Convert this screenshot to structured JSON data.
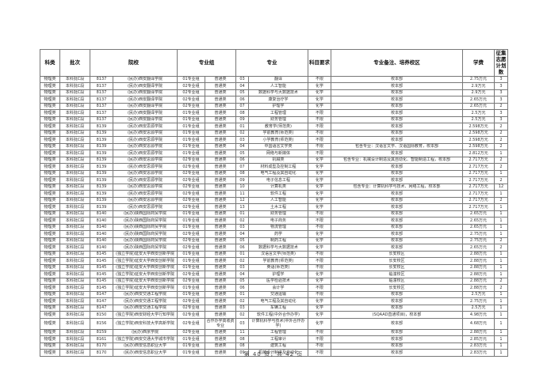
{
  "page": {
    "footer": "第 40 页，共 42 页"
  },
  "table": {
    "headers": [
      "科类",
      "批次",
      "院校",
      "专业组",
      "专业",
      "科目要求",
      "专业备注、培养校区",
      "学费",
      "征集志愿计划数"
    ],
    "columns": [
      "科类",
      "批次",
      "院校代码",
      "院校名称",
      "专业组",
      "类型",
      "专业代码",
      "专业名称",
      "科目要求",
      "专业备注、培养校区",
      "学费",
      "征集志愿计划数"
    ],
    "rows": [
      [
        "物理类",
        "本科批C段",
        "8137",
        "(民办)西安翻译学院",
        "01专业组",
        "普通类",
        "03",
        "翻译",
        "不限",
        "校本部",
        "2.75万元",
        "3"
      ],
      [
        "物理类",
        "本科批C段",
        "8137",
        "(民办)西安翻译学院",
        "02专业组",
        "普通类",
        "04",
        "人工智能",
        "化学",
        "校本部",
        "2.9万元",
        "3"
      ],
      [
        "物理类",
        "本科批C段",
        "8137",
        "(民办)西安翻译学院",
        "02专业组",
        "普通类",
        "05",
        "数据科学与大数据技术",
        "化学",
        "校本部",
        "2.9万元",
        "3"
      ],
      [
        "物理类",
        "本科批C段",
        "8137",
        "(民办)西安翻译学院",
        "02专业组",
        "普通类",
        "06",
        "康复治疗学",
        "化学",
        "校本部",
        "2.65万元",
        "3"
      ],
      [
        "物理类",
        "本科批C段",
        "8137",
        "(民办)西安翻译学院",
        "02专业组",
        "普通类",
        "07",
        "护理学",
        "化学",
        "校本部",
        "2.65万元",
        "2"
      ],
      [
        "物理类",
        "本科批C段",
        "8137",
        "(民办)西安翻译学院",
        "01专业组",
        "普通类",
        "08",
        "工程管理",
        "不限",
        "校本部",
        "2.5万元",
        "3"
      ],
      [
        "物理类",
        "本科批C段",
        "8137",
        "(民办)西安翻译学院",
        "01专业组",
        "普通类",
        "09",
        "财务管理",
        "不限",
        "校本部",
        "2.5万元",
        "3"
      ],
      [
        "物理类",
        "本科批C段",
        "8139",
        "(民办)西安思源学院",
        "01专业组",
        "普通类",
        "01",
        "教育学(师范类)",
        "不限",
        "校本部",
        "2.598万元",
        "2"
      ],
      [
        "物理类",
        "本科批C段",
        "8139",
        "(民办)西安思源学院",
        "01专业组",
        "普通类",
        "02",
        "学前教育(师范类)",
        "不限",
        "校本部",
        "2.598万元",
        "2"
      ],
      [
        "物理类",
        "本科批C段",
        "8139",
        "(民办)西安思源学院",
        "01专业组",
        "普通类",
        "03",
        "小学教育(师范类)",
        "不限",
        "校本部",
        "2.598万元",
        "2"
      ],
      [
        "物理类",
        "本科批C段",
        "8139",
        "(民办)西安思源学院",
        "01专业组",
        "普通类",
        "04",
        "中国语言文学类",
        "不限",
        "包含专业：汉语言文学、汉语国际教育，校本部",
        "2.598万元",
        "2"
      ],
      [
        "物理类",
        "本科批C段",
        "8139",
        "(民办)西安思源学院",
        "01专业组",
        "普通类",
        "05",
        "网络与新媒体",
        "不限",
        "校本部",
        "2.812万元",
        "1"
      ],
      [
        "物理类",
        "本科批C段",
        "8139",
        "(民办)西安思源学院",
        "02专业组",
        "普通类",
        "06",
        "机械类",
        "化学",
        "包含专业：机械设计制造及其自动化、智能制造工程，校本部",
        "2.717万元",
        "2"
      ],
      [
        "物理类",
        "本科批C段",
        "8139",
        "(民办)西安思源学院",
        "02专业组",
        "普通类",
        "07",
        "材料成型及控制工程",
        "化学",
        "校本部",
        "2.717万元",
        "2"
      ],
      [
        "物理类",
        "本科批C段",
        "8139",
        "(民办)西安思源学院",
        "02专业组",
        "普通类",
        "08",
        "电气工程及其自动化",
        "化学",
        "校本部",
        "2.717万元",
        "1"
      ],
      [
        "物理类",
        "本科批C段",
        "8139",
        "(民办)西安思源学院",
        "02专业组",
        "普通类",
        "09",
        "电子信息工程",
        "化学",
        "校本部",
        "2.717万元",
        "2"
      ],
      [
        "物理类",
        "本科批C段",
        "8139",
        "(民办)西安思源学院",
        "02专业组",
        "普通类",
        "10",
        "计算机类",
        "化学",
        "包含专业：计算机科学与技术、网络工程，校本部",
        "2.717万元",
        "12"
      ],
      [
        "物理类",
        "本科批C段",
        "8139",
        "(民办)西安思源学院",
        "02专业组",
        "普通类",
        "11",
        "软件工程",
        "化学",
        "校本部",
        "2.717万元",
        "1"
      ],
      [
        "物理类",
        "本科批C段",
        "8139",
        "(民办)西安思源学院",
        "02专业组",
        "普通类",
        "12",
        "人工智能",
        "化学",
        "校本部",
        "2.717万元",
        "2"
      ],
      [
        "物理类",
        "本科批C段",
        "8139",
        "(民办)西安思源学院",
        "02专业组",
        "普通类",
        "13",
        "土木工程",
        "化学",
        "校本部",
        "2.717万元",
        "1"
      ],
      [
        "物理类",
        "本科批C段",
        "8140",
        "(民办)陕西国际商贸学院",
        "01专业组",
        "普通类",
        "01",
        "财务管理",
        "不限",
        "校本部",
        "2.65万元",
        "1"
      ],
      [
        "物理类",
        "本科批C段",
        "8140",
        "(民办)陕西国际商贸学院",
        "01专业组",
        "普通类",
        "02",
        "电子商务",
        "不限",
        "校本部",
        "2.65万元",
        "1"
      ],
      [
        "物理类",
        "本科批C段",
        "8140",
        "(民办)陕西国际商贸学院",
        "01专业组",
        "普通类",
        "03",
        "物流管理",
        "不限",
        "校本部",
        "2.65万元",
        "1"
      ],
      [
        "物理类",
        "本科批C段",
        "8140",
        "(民办)陕西国际商贸学院",
        "02专业组",
        "普通类",
        "04",
        "药学",
        "化学",
        "校本部",
        "2.75万元",
        "1"
      ],
      [
        "物理类",
        "本科批C段",
        "8140",
        "(民办)陕西国际商贸学院",
        "02专业组",
        "普通类",
        "05",
        "制药工程",
        "化学",
        "校本部",
        "2.75万元",
        "2"
      ],
      [
        "物理类",
        "本科批C段",
        "8140",
        "(民办)陕西国际商贸学院",
        "02专业组",
        "普通类",
        "06",
        "数据科学与大数据技术",
        "化学",
        "校本部",
        "2.65万元",
        "2"
      ],
      [
        "物理类",
        "本科批C段",
        "8145",
        "(独立学院)延安大学西安创新学院",
        "01专业组",
        "普通类",
        "01",
        "汉语言文学(师范类)",
        "不限",
        "长安校区",
        "2.88万元",
        "1"
      ],
      [
        "物理类",
        "本科批C段",
        "8145",
        "(独立学院)延安大学西安创新学院",
        "01专业组",
        "普通类",
        "02",
        "学前教育(师范类)",
        "不限",
        "长安校区",
        "2.88万元",
        "1"
      ],
      [
        "物理类",
        "本科批C段",
        "8145",
        "(独立学院)延安大学西安创新学院",
        "01专业组",
        "普通类",
        "03",
        "英语(师范类)",
        "不限",
        "长安校区",
        "2.88万元",
        "1"
      ],
      [
        "物理类",
        "本科批C段",
        "8145",
        "(独立学院)延安大学西安创新学院",
        "02专业组",
        "普通类",
        "04",
        "护理学",
        "化学",
        "临潼校区",
        "2.88万元",
        "1"
      ],
      [
        "物理类",
        "本科批C段",
        "8145",
        "(独立学院)延安大学西安创新学院",
        "02专业组",
        "普通类",
        "05",
        "医学检验技术",
        "化学",
        "临潼校区",
        "2.88万元",
        "2"
      ],
      [
        "物理类",
        "本科批C段",
        "8145",
        "(独立学院)延安大学西安创新学院",
        "01专业组",
        "普通类",
        "06",
        "会计学",
        "不限",
        "长安校区",
        "2.88万元",
        "2"
      ],
      [
        "物理类",
        "本科批C段",
        "8147",
        "(民办)西安交通工程学院",
        "01专业组",
        "普通类",
        "01",
        "交通运输",
        "不限",
        "校本部",
        "2.5万元",
        "1"
      ],
      [
        "物理类",
        "本科批C段",
        "8147",
        "(民办)西安交通工程学院",
        "02专业组",
        "普通类",
        "02",
        "电气工程及其自动化",
        "化学",
        "校本部",
        "2.75万元",
        "1"
      ],
      [
        "物理类",
        "本科批C段",
        "8147",
        "(民办)西安交通工程学院",
        "02专业组",
        "普通类",
        "03",
        "车辆工程",
        "化学",
        "校本部",
        "2.5万元",
        "1"
      ],
      [
        "物理类",
        "本科批C段",
        "8150",
        "(独立学院)西安财经大学行知学院",
        "02专业组",
        "普通类",
        "02",
        "软件工程(中外合作办学)",
        "化学",
        "(SQAAD直通项目)，校本部",
        "4.98万元",
        "1"
      ],
      [
        "物理类",
        "本科批C段",
        "8156",
        "(独立学院)西安科技大学高新学院",
        "02专业组",
        "合作办学高收费专业",
        "03",
        "计算机科学与技术(中外合作办学)",
        "化学",
        "校本部",
        "4.68万元",
        "1"
      ],
      [
        "物理类",
        "本科批C段",
        "8159",
        "(民办)西京学院",
        "02专业组",
        "普通类",
        "11",
        "工程管理",
        "不限",
        "校本部",
        "2.88万元",
        "1"
      ],
      [
        "物理类",
        "本科批C段",
        "8161",
        "(独立学院)西安交通大学城市学院",
        "01专业组",
        "普通类",
        "08",
        "工程审计",
        "不限",
        "校本部",
        "2.85万元",
        "1"
      ],
      [
        "物理类",
        "本科批C段",
        "8170",
        "(民办)西安信息职业大学",
        "01专业组",
        "普通类",
        "08",
        "建筑工程",
        "不限",
        "校本部",
        "2.83万元",
        "1"
      ],
      [
        "物理类",
        "本科批C段",
        "8170",
        "(民办)西安信息职业大学",
        "01专业组",
        "普通类",
        "09",
        "机械设计制造及自动化",
        "不限",
        "校本部",
        "2.83万元",
        "1"
      ]
    ]
  }
}
